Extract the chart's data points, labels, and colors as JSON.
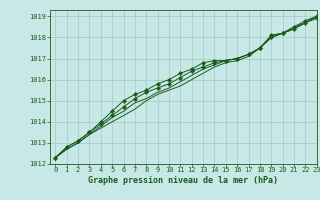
{
  "xlabel": "Graphe pression niveau de la mer (hPa)",
  "xlim": [
    -0.5,
    23
  ],
  "ylim": [
    1012,
    1019.3
  ],
  "yticks": [
    1012,
    1013,
    1014,
    1015,
    1016,
    1017,
    1018,
    1019
  ],
  "xticks": [
    0,
    1,
    2,
    3,
    4,
    5,
    6,
    7,
    8,
    9,
    10,
    11,
    12,
    13,
    14,
    15,
    16,
    17,
    18,
    19,
    20,
    21,
    22,
    23
  ],
  "bg_color": "#c8e8e8",
  "grid_color": "#a0c8c8",
  "line_color": "#1a5c1a",
  "series": [
    [
      1012.3,
      1012.7,
      1013.0,
      1013.4,
      1013.7,
      1014.0,
      1014.3,
      1014.6,
      1015.0,
      1015.3,
      1015.5,
      1015.7,
      1016.0,
      1016.3,
      1016.6,
      1016.8,
      1016.9,
      1017.1,
      1017.5,
      1018.0,
      1018.2,
      1018.4,
      1018.7,
      1019.0
    ],
    [
      1012.3,
      1012.7,
      1013.0,
      1013.4,
      1013.8,
      1014.2,
      1014.5,
      1014.9,
      1015.1,
      1015.4,
      1015.6,
      1015.9,
      1016.2,
      1016.5,
      1016.7,
      1016.9,
      1017.0,
      1017.2,
      1017.5,
      1018.1,
      1018.2,
      1018.5,
      1018.7,
      1019.0
    ],
    [
      1012.3,
      1012.8,
      1013.1,
      1013.5,
      1013.9,
      1014.3,
      1014.7,
      1015.1,
      1015.4,
      1015.6,
      1015.8,
      1016.1,
      1016.4,
      1016.6,
      1016.8,
      1016.9,
      1017.0,
      1017.2,
      1017.5,
      1018.1,
      1018.2,
      1018.5,
      1018.8,
      1019.0
    ],
    [
      1012.3,
      1012.8,
      1013.1,
      1013.5,
      1014.0,
      1014.5,
      1015.0,
      1015.3,
      1015.5,
      1015.8,
      1016.0,
      1016.3,
      1016.5,
      1016.8,
      1016.9,
      1016.9,
      1017.0,
      1017.2,
      1017.5,
      1018.0,
      1018.2,
      1018.4,
      1018.7,
      1018.9
    ]
  ],
  "marker_series": [
    2,
    3
  ],
  "marker": "D",
  "marker_size": 2.2,
  "linewidth": 0.7,
  "font_size_tick": 5.0,
  "font_size_label": 6.0,
  "font_color": "#1a5c1a"
}
